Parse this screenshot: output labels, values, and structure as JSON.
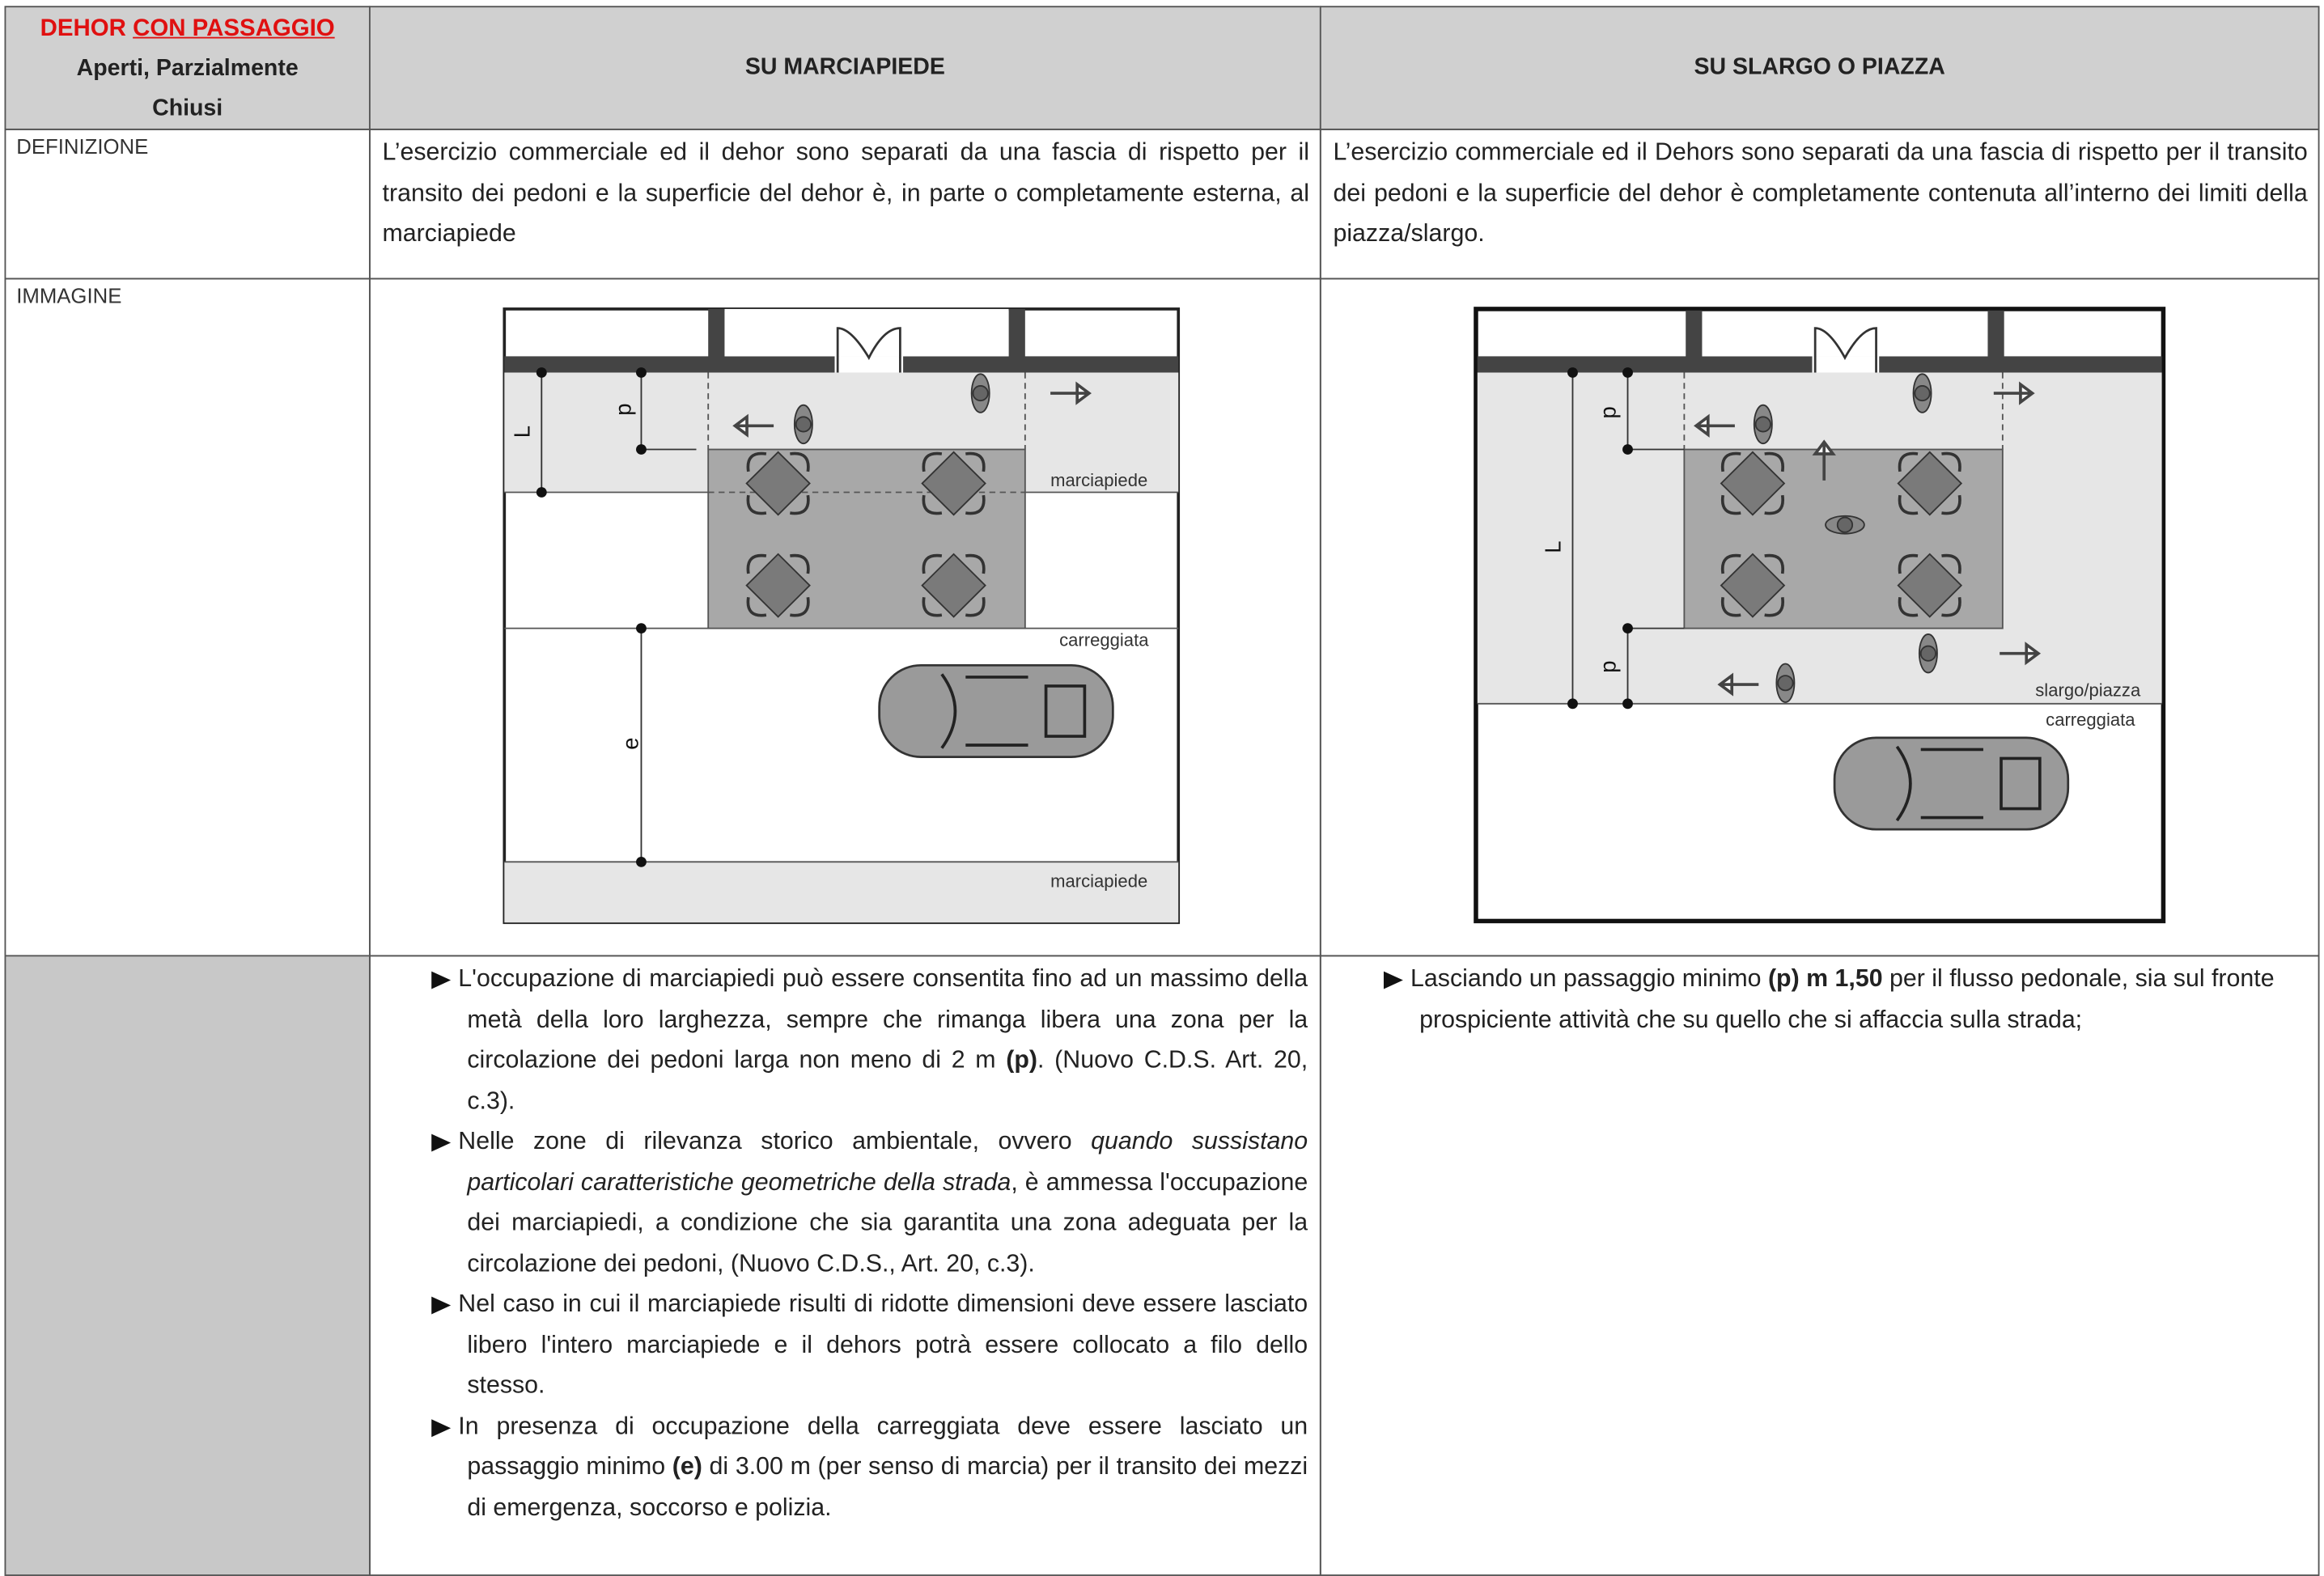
{
  "header": {
    "title_a": "DEHOR",
    "title_b": "CON PASSAGGIO",
    "subtitle": "Aperti, Parzialmente Chiusi",
    "col2": "SU MARCIAPIEDE",
    "col3": "SU SLARGO O PIAZZA"
  },
  "rows": [
    {
      "label": "DEFINIZIONE",
      "col2": "L’esercizio commerciale ed il dehor sono separati da una fascia di rispetto per il transito dei pedoni e la superficie del dehor è, in parte o completamente esterna, al marciapiede",
      "col3": "L’esercizio commerciale ed il Dehors sono separati da una fascia di rispetto per il transito dei pedoni  e la superficie del dehor è completamente contenuta all’interno dei limiti della piazza/slargo."
    },
    {
      "label": "IMMAGINE",
      "col2_labels": [
        "L",
        "p",
        "e",
        "marciapiede",
        "carreggiata",
        "marciapiede"
      ],
      "col3_labels": [
        "L",
        "p",
        "p",
        "slargo/piazza",
        "carreggiata"
      ]
    },
    {
      "col2": [
        [
          "L'occupazione di marciapiedi può essere consentita fino ad un massimo della metà della loro larghezza, sempre che rimanga libera una zona per la circolazione dei pedoni larga non meno di 2 m ",
          {
            "text": "(p)",
            "style": "bold"
          },
          ". (Nuovo C.D.S. Art. 20, c.3)."
        ],
        [
          "Nelle zone di rilevanza storico ambientale, ovvero ",
          {
            "text": "quando sussistano particolari caratteristiche geometriche della strada",
            "style": "italic"
          },
          ", è ammessa l'occupazione dei marciapiedi, a condizione che sia garantita una zona adeguata per la circolazione dei pedoni, (Nuovo C.D.S., Art. 20, c.3)."
        ],
        [
          "Nel caso in cui il marciapiede risulti di ridotte dimensioni deve essere lasciato libero l'intero marciapiede e il dehors potrà essere collocato a filo dello stesso."
        ],
        [
          "In presenza di occupazione della carreggiata deve essere lasciato un passaggio minimo ",
          {
            "text": "(e)",
            "style": "bold"
          },
          " di 3.00 m (per senso di marcia) per il transito dei mezzi di emergenza, soccorso e polizia."
        ]
      ],
      "col3": [
        [
          "Lasciando un passaggio minimo ",
          {
            "text": "(p) m 1,50",
            "style": "bold"
          },
          " per il flusso pedonale, sia sul fronte prospiciente attività che su quello che si affaccia sulla strada;"
        ]
      ]
    }
  ]
}
